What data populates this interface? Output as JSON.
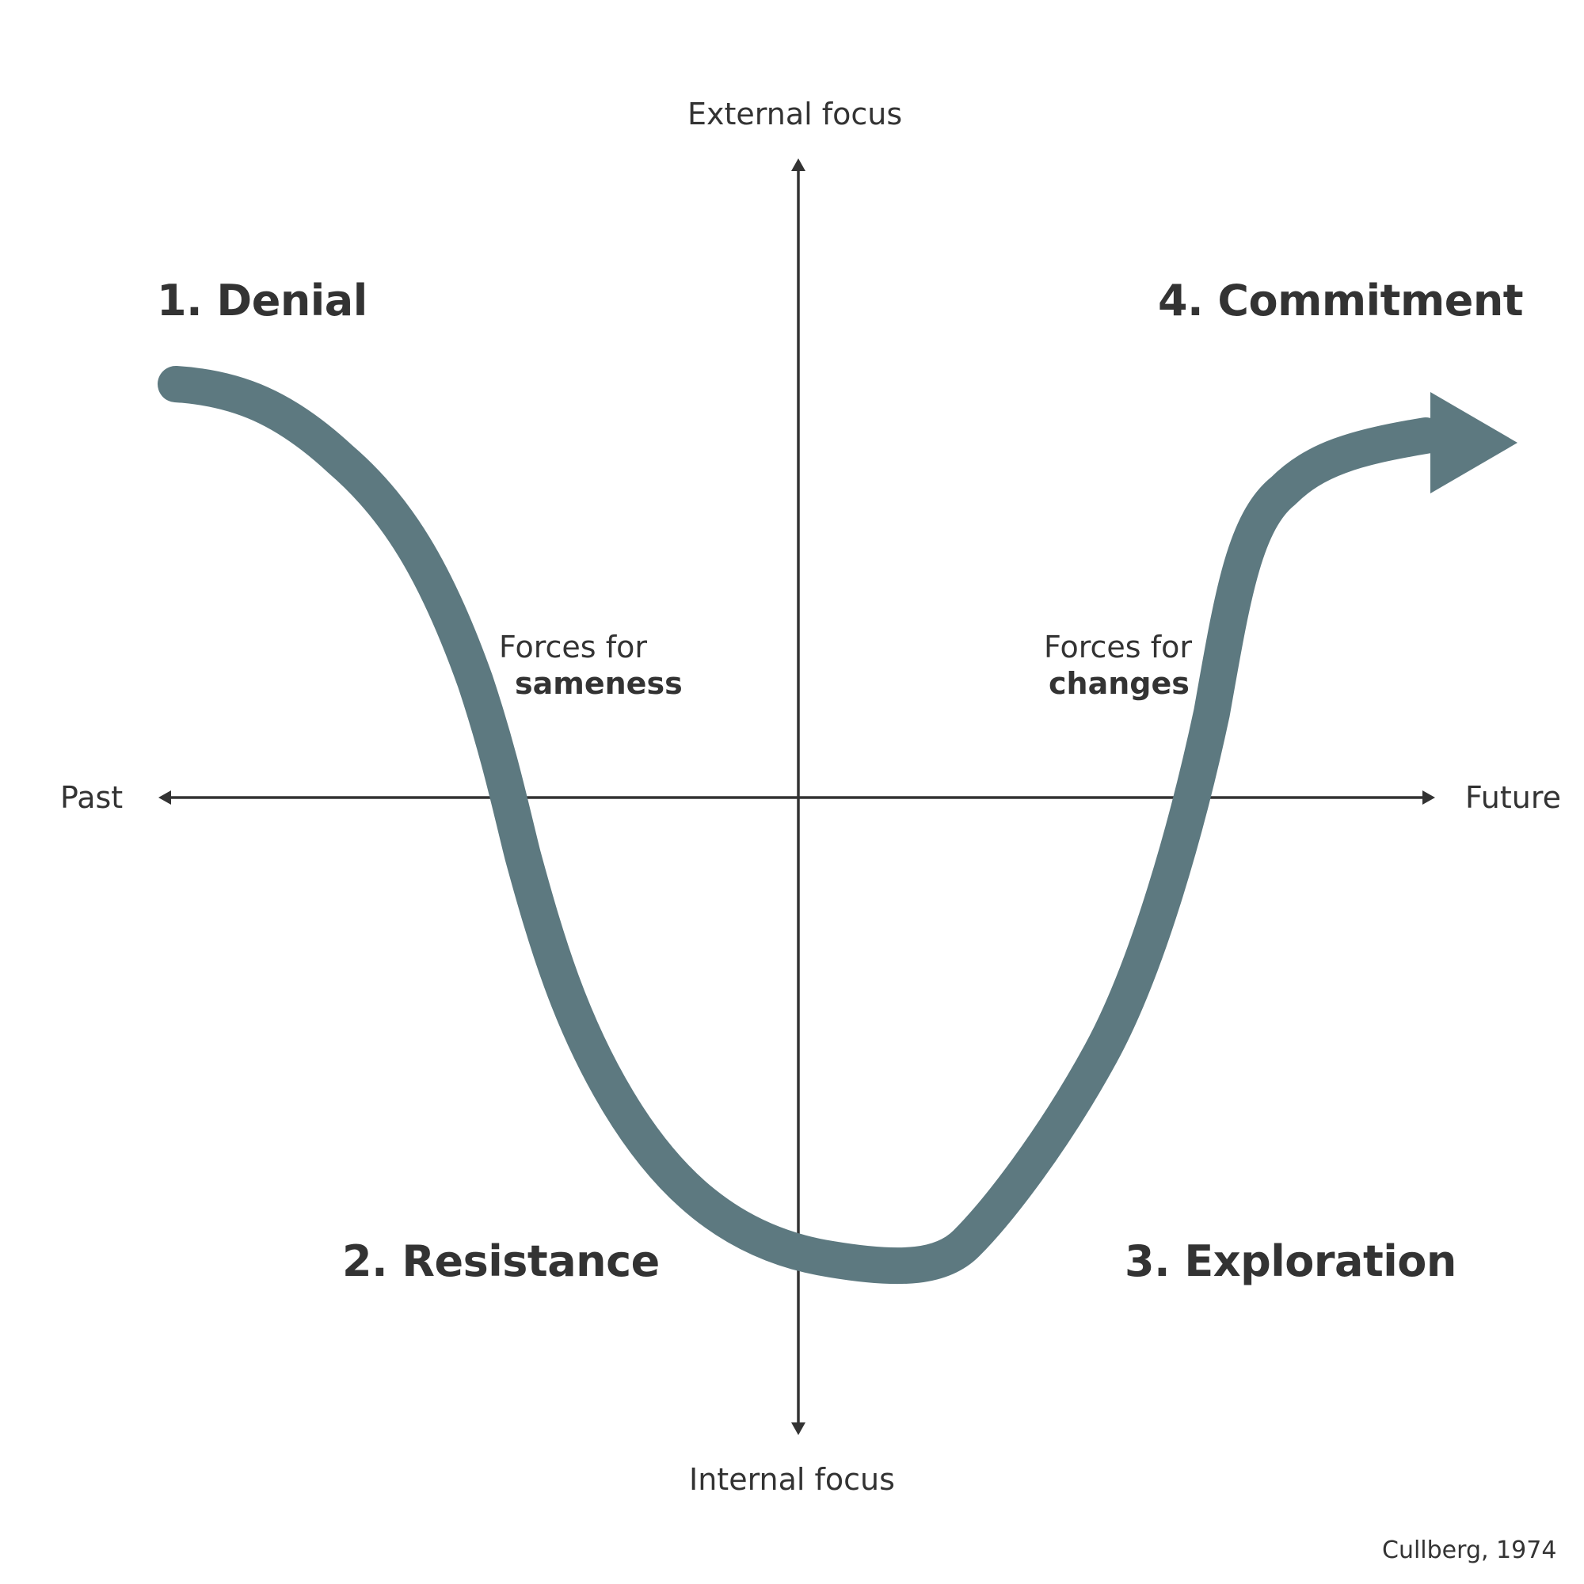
{
  "axes": {
    "top": "External focus",
    "bottom": "Internal focus",
    "left": "Past",
    "right": "Future"
  },
  "stages": {
    "denial": "1. Denial",
    "resistance": "2. Resistance",
    "exploration": "3. Exploration",
    "commitment": "4. Commitment"
  },
  "forces": {
    "sameness_prefix": "Forces for",
    "sameness_strong": "sameness",
    "changes_prefix": "Forces for",
    "changes_strong": "changes"
  },
  "source": "Cullberg, 1974",
  "colors": {
    "curve": "#5d7980",
    "text": "#333333",
    "axis": "#333333",
    "background": "#ffffff"
  }
}
